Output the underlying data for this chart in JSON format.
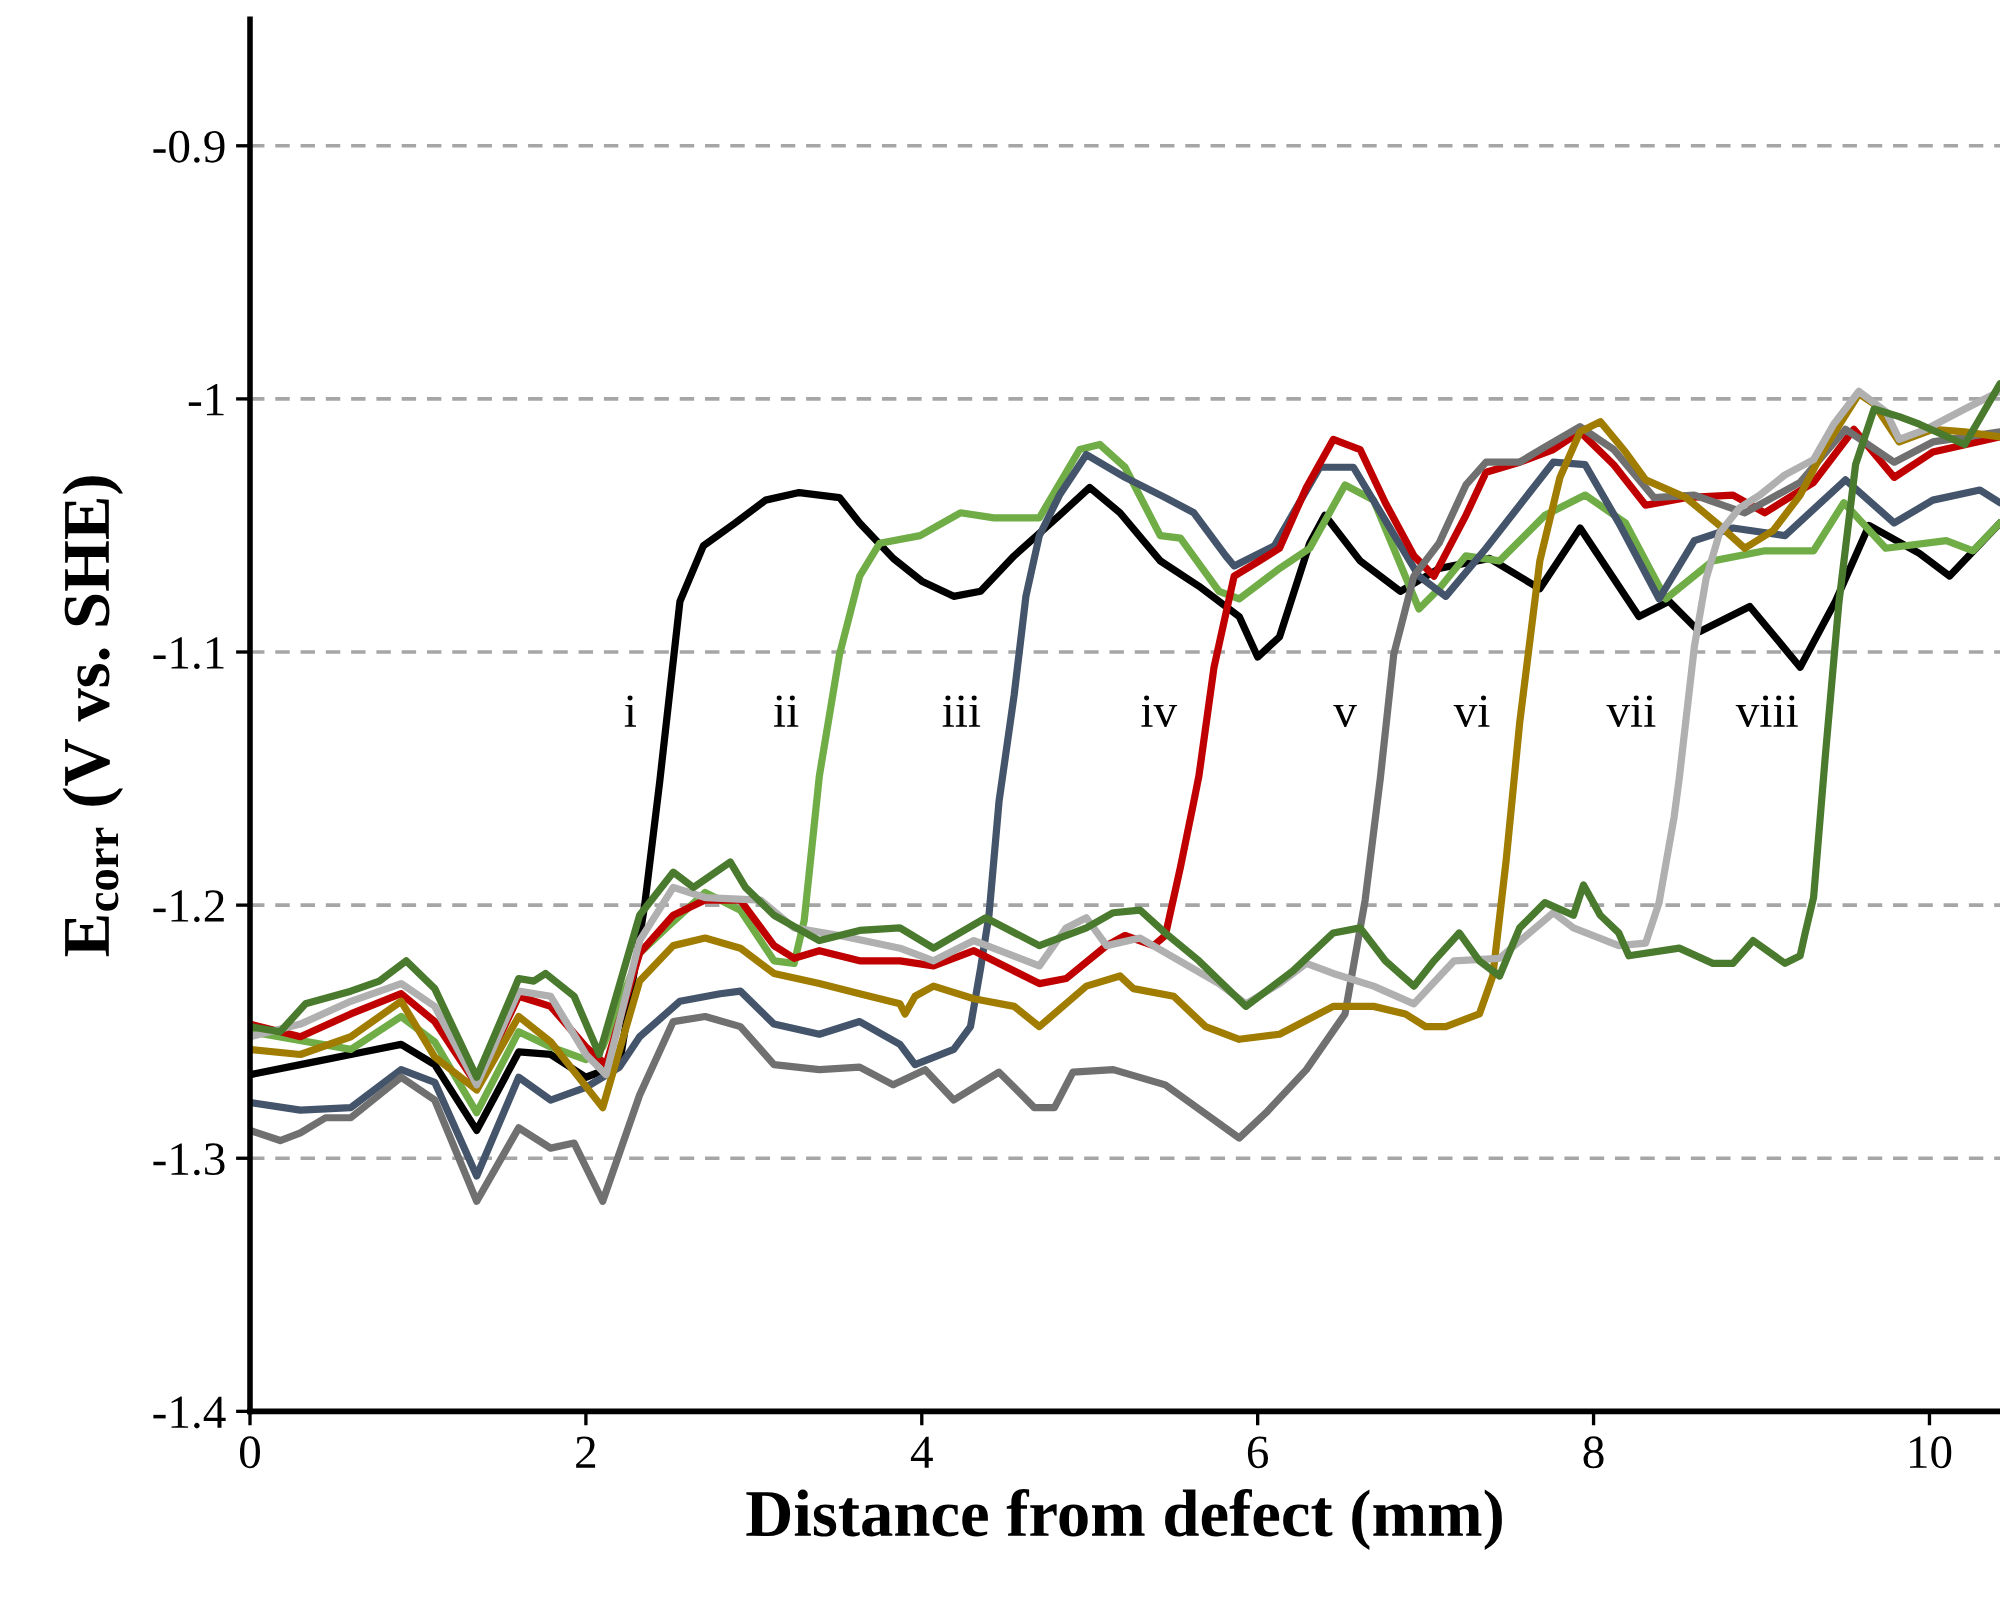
{
  "chart_data": {
    "type": "line",
    "xlabel": "Distance from defect (mm)",
    "ylabel": "E$_{corr}$ (V vs. SHE)",
    "xlim": [
      0,
      10.42
    ],
    "xticks": [
      0,
      2,
      4,
      6,
      8,
      10
    ],
    "ylim": [
      -1.4,
      -0.85
    ],
    "yticks": [
      {
        "value": -1.4,
        "label": "-1.4"
      },
      {
        "value": -1.3,
        "label": "-1.3"
      },
      {
        "value": -1.2,
        "label": "-1.2"
      },
      {
        "value": -1.1,
        "label": "-1.1"
      },
      {
        "value": -1.0,
        "label": "-1"
      },
      {
        "value": -0.9,
        "label": "-0.9"
      }
    ],
    "grid": "y",
    "marker": "none",
    "line_style": "solid",
    "series": [
      {
        "name": "i",
        "color": "#000000",
        "x": [
          0,
          0.3,
          0.6,
          0.9,
          1.1,
          1.35,
          1.6,
          1.79,
          2.0,
          2.2,
          2.35,
          2.44,
          2.56,
          2.7,
          2.89,
          3.07,
          3.27,
          3.51,
          3.63,
          3.83,
          4.0,
          4.19,
          4.35,
          4.55,
          4.82,
          5.0,
          5.18,
          5.42,
          5.65,
          5.89,
          6.0,
          6.13,
          6.31,
          6.4,
          6.61,
          6.85,
          7.08,
          7.38,
          7.68,
          7.92,
          8.27,
          8.45,
          8.63,
          8.93,
          9.23,
          9.44,
          9.64,
          9.94,
          10.12,
          10.42
        ],
        "values": [
          -1.267,
          -1.263,
          -1.259,
          -1.255,
          -1.263,
          -1.289,
          -1.258,
          -1.259,
          -1.268,
          -1.263,
          -1.2,
          -1.151,
          -1.08,
          -1.058,
          -1.049,
          -1.04,
          -1.037,
          -1.039,
          -1.049,
          -1.063,
          -1.072,
          -1.078,
          -1.076,
          -1.062,
          -1.046,
          -1.035,
          -1.045,
          -1.064,
          -1.074,
          -1.086,
          -1.102,
          -1.094,
          -1.057,
          -1.046,
          -1.064,
          -1.076,
          -1.067,
          -1.063,
          -1.075,
          -1.051,
          -1.086,
          -1.08,
          -1.092,
          -1.082,
          -1.106,
          -1.08,
          -1.05,
          -1.061,
          -1.07,
          -1.049
        ]
      },
      {
        "name": "ii",
        "color": "#70ad47",
        "x": [
          0,
          0.6,
          0.9,
          1.1,
          1.35,
          1.6,
          1.79,
          2.0,
          2.1,
          2.32,
          2.48,
          2.71,
          2.92,
          3.12,
          3.24,
          3.3,
          3.39,
          3.51,
          3.63,
          3.75,
          3.99,
          4.23,
          4.43,
          4.7,
          4.94,
          5.06,
          5.21,
          5.42,
          5.54,
          5.77,
          5.89,
          6.13,
          6.31,
          6.52,
          6.69,
          6.96,
          7.08,
          7.24,
          7.44,
          7.71,
          7.95,
          8.19,
          8.43,
          8.71,
          9.02,
          9.31,
          9.49,
          9.74,
          10.1,
          10.26,
          10.42
        ],
        "values": [
          -1.25,
          -1.257,
          -1.244,
          -1.254,
          -1.282,
          -1.25,
          -1.256,
          -1.261,
          -1.256,
          -1.219,
          -1.209,
          -1.195,
          -1.202,
          -1.222,
          -1.223,
          -1.206,
          -1.149,
          -1.101,
          -1.07,
          -1.057,
          -1.054,
          -1.045,
          -1.047,
          -1.047,
          -1.02,
          -1.018,
          -1.027,
          -1.054,
          -1.055,
          -1.076,
          -1.079,
          -1.067,
          -1.059,
          -1.034,
          -1.04,
          -1.083,
          -1.075,
          -1.062,
          -1.064,
          -1.046,
          -1.038,
          -1.049,
          -1.079,
          -1.064,
          -1.06,
          -1.06,
          -1.041,
          -1.059,
          -1.056,
          -1.06,
          -1.049
        ]
      },
      {
        "name": "iii",
        "color": "#44546a",
        "x": [
          0,
          0.3,
          0.6,
          0.9,
          1.1,
          1.35,
          1.6,
          1.79,
          2.0,
          2.2,
          2.32,
          2.56,
          2.8,
          2.92,
          3.12,
          3.39,
          3.63,
          3.87,
          3.96,
          4.19,
          4.29,
          4.35,
          4.4,
          4.46,
          4.55,
          4.62,
          4.7,
          4.82,
          4.98,
          5.21,
          5.45,
          5.62,
          5.81,
          5.86,
          6.1,
          6.37,
          6.57,
          6.96,
          7.12,
          7.36,
          7.76,
          7.95,
          8.15,
          8.39,
          8.6,
          8.83,
          9.14,
          9.5,
          9.79,
          10.02,
          10.3,
          10.42
        ],
        "values": [
          -1.278,
          -1.281,
          -1.28,
          -1.265,
          -1.27,
          -1.307,
          -1.268,
          -1.277,
          -1.272,
          -1.264,
          -1.252,
          -1.238,
          -1.235,
          -1.234,
          -1.247,
          -1.251,
          -1.246,
          -1.255,
          -1.263,
          -1.257,
          -1.248,
          -1.225,
          -1.204,
          -1.159,
          -1.117,
          -1.078,
          -1.054,
          -1.038,
          -1.022,
          -1.031,
          -1.039,
          -1.045,
          -1.062,
          -1.066,
          -1.058,
          -1.027,
          -1.027,
          -1.07,
          -1.078,
          -1.059,
          -1.025,
          -1.026,
          -1.049,
          -1.079,
          -1.056,
          -1.051,
          -1.054,
          -1.032,
          -1.049,
          -1.04,
          -1.036,
          -1.041
        ]
      },
      {
        "name": "iv",
        "color": "#c00000",
        "x": [
          0,
          0.3,
          0.6,
          0.9,
          1.1,
          1.35,
          1.6,
          1.79,
          2.0,
          2.12,
          2.32,
          2.52,
          2.71,
          2.92,
          3.12,
          3.24,
          3.39,
          3.63,
          3.87,
          4.07,
          4.31,
          4.7,
          4.86,
          5.1,
          5.21,
          5.38,
          5.45,
          5.54,
          5.62,
          5.65,
          5.74,
          5.86,
          6.01,
          6.13,
          6.29,
          6.45,
          6.61,
          6.76,
          6.93,
          7.05,
          7.24,
          7.36,
          7.56,
          7.76,
          7.92,
          8.12,
          8.31,
          8.55,
          8.83,
          9.02,
          9.31,
          9.55,
          9.79,
          10.02,
          10.42
        ],
        "values": [
          -1.247,
          -1.252,
          -1.243,
          -1.235,
          -1.246,
          -1.271,
          -1.236,
          -1.24,
          -1.256,
          -1.263,
          -1.219,
          -1.204,
          -1.198,
          -1.198,
          -1.216,
          -1.221,
          -1.218,
          -1.222,
          -1.222,
          -1.224,
          -1.218,
          -1.231,
          -1.229,
          -1.216,
          -1.212,
          -1.216,
          -1.212,
          -1.185,
          -1.159,
          -1.149,
          -1.106,
          -1.07,
          -1.064,
          -1.059,
          -1.035,
          -1.016,
          -1.02,
          -1.041,
          -1.062,
          -1.07,
          -1.046,
          -1.029,
          -1.025,
          -1.02,
          -1.013,
          -1.026,
          -1.042,
          -1.039,
          -1.038,
          -1.045,
          -1.033,
          -1.012,
          -1.031,
          -1.021,
          -1.015
        ]
      },
      {
        "name": "v",
        "color": "#707070",
        "x": [
          0,
          0.18,
          0.3,
          0.45,
          0.6,
          0.9,
          1.1,
          1.35,
          1.6,
          1.79,
          1.93,
          2.1,
          2.32,
          2.52,
          2.71,
          2.92,
          3.12,
          3.39,
          3.63,
          3.83,
          4.02,
          4.19,
          4.46,
          4.67,
          4.79,
          4.9,
          5.14,
          5.45,
          5.89,
          6.05,
          6.29,
          6.52,
          6.64,
          6.73,
          6.81,
          6.93,
          7.08,
          7.24,
          7.36,
          7.56,
          7.71,
          7.92,
          8.12,
          8.36,
          8.6,
          8.9,
          9.23,
          9.5,
          9.79,
          10.02,
          10.42
        ],
        "values": [
          -1.289,
          -1.293,
          -1.29,
          -1.284,
          -1.284,
          -1.268,
          -1.277,
          -1.317,
          -1.288,
          -1.296,
          -1.294,
          -1.317,
          -1.275,
          -1.246,
          -1.244,
          -1.248,
          -1.263,
          -1.265,
          -1.264,
          -1.271,
          -1.265,
          -1.277,
          -1.266,
          -1.28,
          -1.28,
          -1.266,
          -1.265,
          -1.271,
          -1.292,
          -1.282,
          -1.265,
          -1.243,
          -1.198,
          -1.15,
          -1.101,
          -1.07,
          -1.057,
          -1.034,
          -1.025,
          -1.025,
          -1.019,
          -1.011,
          -1.02,
          -1.039,
          -1.038,
          -1.045,
          -1.033,
          -1.012,
          -1.025,
          -1.017,
          -1.013
        ]
      },
      {
        "name": "vi",
        "color": "#a07c00",
        "x": [
          0,
          0.3,
          0.6,
          0.9,
          1.1,
          1.35,
          1.6,
          1.79,
          2.1,
          2.32,
          2.52,
          2.71,
          2.92,
          3.12,
          3.39,
          3.63,
          3.87,
          3.9,
          3.96,
          4.07,
          4.31,
          4.55,
          4.7,
          4.98,
          5.18,
          5.26,
          5.5,
          5.69,
          5.89,
          6.13,
          6.45,
          6.69,
          6.88,
          7.0,
          7.12,
          7.32,
          7.4,
          7.48,
          7.56,
          7.68,
          7.8,
          7.92,
          8.04,
          8.19,
          8.31,
          8.55,
          8.75,
          8.9,
          9.07,
          9.23,
          9.38,
          9.58,
          9.67,
          9.82,
          10.02,
          10.21,
          10.42
        ],
        "values": [
          -1.257,
          -1.259,
          -1.252,
          -1.238,
          -1.26,
          -1.273,
          -1.244,
          -1.254,
          -1.28,
          -1.23,
          -1.216,
          -1.213,
          -1.217,
          -1.227,
          -1.231,
          -1.235,
          -1.239,
          -1.243,
          -1.236,
          -1.232,
          -1.237,
          -1.24,
          -1.248,
          -1.232,
          -1.228,
          -1.233,
          -1.236,
          -1.248,
          -1.253,
          -1.251,
          -1.24,
          -1.24,
          -1.243,
          -1.248,
          -1.248,
          -1.243,
          -1.228,
          -1.182,
          -1.128,
          -1.064,
          -1.031,
          -1.013,
          -1.009,
          -1.021,
          -1.032,
          -1.039,
          -1.05,
          -1.059,
          -1.052,
          -1.038,
          -1.019,
          -0.998,
          -1.002,
          -1.017,
          -1.012,
          -1.013,
          -1.015
        ]
      },
      {
        "name": "vii",
        "color": "#b0b0b0",
        "x": [
          0,
          0.3,
          0.6,
          0.9,
          1.1,
          1.35,
          1.6,
          1.79,
          2.0,
          2.12,
          2.32,
          2.52,
          2.71,
          3.04,
          3.24,
          3.51,
          3.87,
          4.07,
          4.31,
          4.7,
          4.86,
          4.98,
          5.1,
          5.3,
          5.77,
          5.93,
          6.13,
          6.29,
          6.45,
          6.69,
          6.93,
          7.17,
          7.44,
          7.6,
          7.76,
          7.88,
          8.15,
          8.31,
          8.39,
          8.48,
          8.51,
          8.6,
          8.67,
          8.75,
          8.87,
          8.99,
          9.14,
          9.31,
          9.43,
          9.58,
          9.74,
          9.82,
          9.98,
          10.21,
          10.42
        ],
        "values": [
          -1.252,
          -1.247,
          -1.238,
          -1.231,
          -1.24,
          -1.271,
          -1.234,
          -1.236,
          -1.259,
          -1.267,
          -1.214,
          -1.193,
          -1.197,
          -1.198,
          -1.209,
          -1.212,
          -1.217,
          -1.222,
          -1.214,
          -1.224,
          -1.209,
          -1.205,
          -1.216,
          -1.213,
          -1.231,
          -1.239,
          -1.231,
          -1.223,
          -1.227,
          -1.232,
          -1.239,
          -1.222,
          -1.221,
          -1.212,
          -1.203,
          -1.209,
          -1.216,
          -1.215,
          -1.199,
          -1.165,
          -1.15,
          -1.098,
          -1.071,
          -1.053,
          -1.043,
          -1.038,
          -1.03,
          -1.024,
          -1.01,
          -0.997,
          -1.005,
          -1.016,
          -1.012,
          -1.004,
          -0.997
        ]
      },
      {
        "name": "viii",
        "color": "#4a7a2e",
        "x": [
          0,
          0.18,
          0.33,
          0.6,
          0.77,
          0.93,
          1.1,
          1.35,
          1.6,
          1.69,
          1.76,
          1.93,
          2.08,
          2.32,
          2.52,
          2.64,
          2.86,
          2.95,
          3.12,
          3.39,
          3.63,
          3.87,
          4.07,
          4.38,
          4.7,
          4.98,
          5.14,
          5.3,
          5.45,
          5.65,
          5.93,
          6.21,
          6.45,
          6.61,
          6.76,
          6.93,
          7.05,
          7.2,
          7.32,
          7.44,
          7.56,
          7.71,
          7.88,
          7.94,
          8.04,
          8.15,
          8.21,
          8.51,
          8.71,
          8.83,
          8.95,
          9.14,
          9.23,
          9.26,
          9.31,
          9.38,
          9.46,
          9.56,
          9.67,
          9.82,
          9.94,
          10.21,
          10.42
        ],
        "values": [
          -1.248,
          -1.25,
          -1.239,
          -1.234,
          -1.23,
          -1.222,
          -1.233,
          -1.268,
          -1.229,
          -1.23,
          -1.227,
          -1.236,
          -1.259,
          -1.204,
          -1.187,
          -1.193,
          -1.183,
          -1.193,
          -1.204,
          -1.214,
          -1.21,
          -1.209,
          -1.217,
          -1.205,
          -1.216,
          -1.209,
          -1.203,
          -1.202,
          -1.211,
          -1.222,
          -1.24,
          -1.226,
          -1.211,
          -1.209,
          -1.222,
          -1.232,
          -1.222,
          -1.211,
          -1.222,
          -1.228,
          -1.209,
          -1.199,
          -1.204,
          -1.192,
          -1.204,
          -1.211,
          -1.22,
          -1.217,
          -1.223,
          -1.223,
          -1.214,
          -1.223,
          -1.22,
          -1.211,
          -1.197,
          -1.141,
          -1.081,
          -1.026,
          -1.004,
          -1.007,
          -1.01,
          -1.018,
          -0.994
        ]
      }
    ]
  }
}
